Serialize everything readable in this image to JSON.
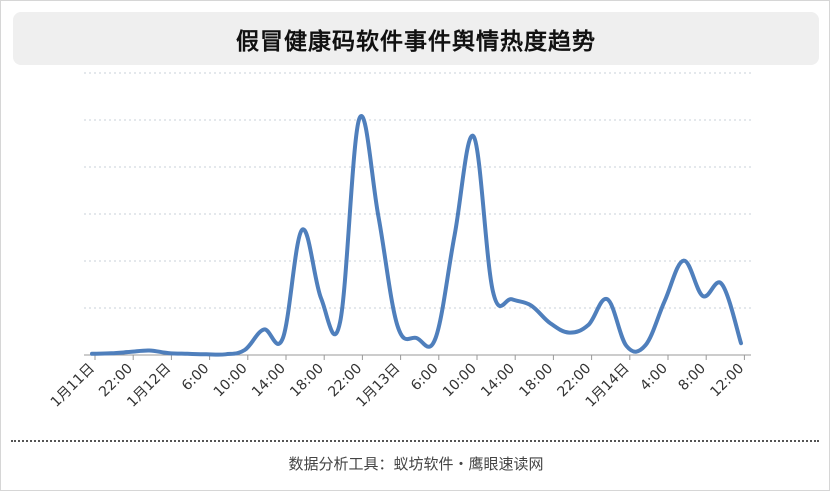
{
  "footer": {
    "text": "数据分析工具：蚁坊软件・鹰眼速读网"
  },
  "colors": {
    "line": "#4f7fbc",
    "grid": "#c8d0da",
    "axis": "#999999",
    "title_bg": "#efefef"
  },
  "chart_data": {
    "type": "line",
    "title": "假冒健康码软件事件舆情热度趋势",
    "xlabel": "",
    "ylabel": "",
    "grid": true,
    "y_ticks_labeled": false,
    "ylim": [
      0,
      100
    ],
    "x_tick_labels": [
      "1月11日",
      "22:00",
      "1月12日",
      "6:00",
      "10:00",
      "14:00",
      "18:00",
      "22:00",
      "1月13日",
      "6:00",
      "10:00",
      "14:00",
      "18:00",
      "22:00",
      "1月14日",
      "4:00",
      "8:00",
      "12:00"
    ],
    "series": [
      {
        "name": "",
        "values": [
          0.5,
          0.7,
          1.3,
          1.9,
          0.8,
          0.5,
          0.3,
          0.3,
          2.1,
          10.8,
          7.2,
          53.0,
          24.0,
          14.0,
          100.0,
          59.0,
          12.5,
          7.2,
          7.2,
          51.0,
          92.5,
          27.0,
          23.6,
          21.0,
          13.5,
          9.5,
          12.7,
          23.6,
          3.8,
          4.2,
          22.8,
          40.0,
          25.0,
          30.0,
          5.0
        ]
      }
    ]
  }
}
